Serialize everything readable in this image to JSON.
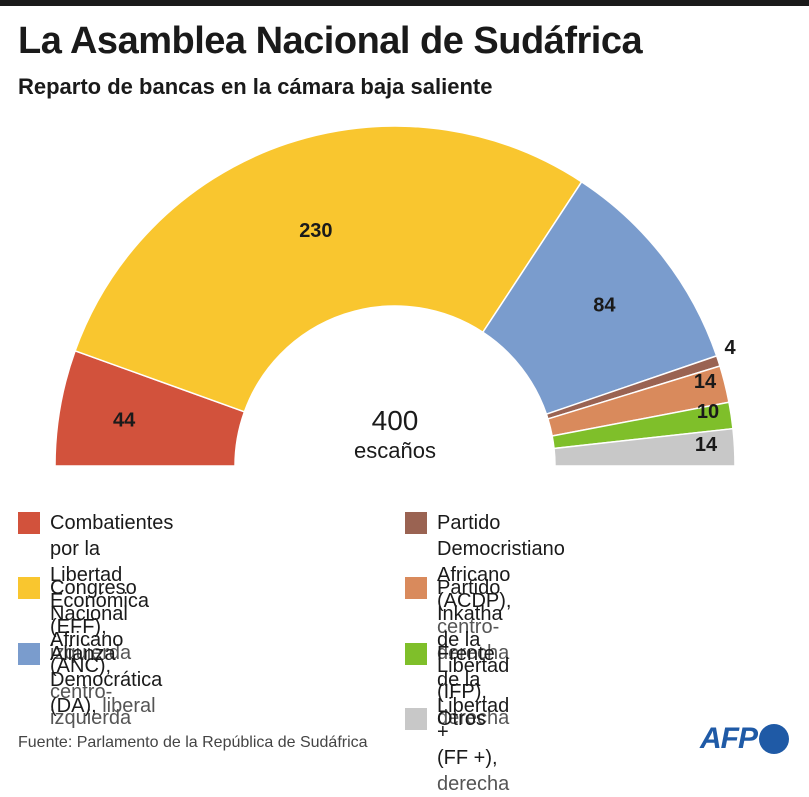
{
  "header": {
    "title": "La Asamblea Nacional de Sudáfrica",
    "subtitle": "Reparto de bancas en la cámara baja saliente"
  },
  "chart_data": {
    "type": "pie",
    "variant": "semicircle",
    "title": "La Asamblea Nacional de Sudáfrica",
    "subtitle": "Reparto de bancas en la cámara baja saliente",
    "total": 400,
    "center_label": [
      "400",
      "escaños"
    ],
    "series": [
      {
        "name": "Combatientes por la Libertad Económica (EFF)",
        "note": "izquierda",
        "value": 44,
        "color": "#d2523c"
      },
      {
        "name": "Congreso Nacional Africano (ANC)",
        "note": "centro-izquierda",
        "value": 230,
        "color": "#f9c62f"
      },
      {
        "name": "Alianza Democrática (DA)",
        "note": "liberal",
        "value": 84,
        "color": "#7a9ccd"
      },
      {
        "name": "Partido Democristiano Africano (ACDP)",
        "note": "centro-derecha",
        "value": 4,
        "color": "#9a6352"
      },
      {
        "name": "Partido Inkatha de la Libertad (IFP)",
        "note": "derecha",
        "value": 14,
        "color": "#d98a5c"
      },
      {
        "name": "Frente de la Libertad + (FF +)",
        "note": "derecha",
        "value": 10,
        "color": "#7fbf2a"
      },
      {
        "name": "Otros",
        "note": "",
        "value": 14,
        "color": "#c8c8c8"
      }
    ],
    "data_labels": [
      "44",
      "230",
      "84",
      "4",
      "14",
      "10",
      "14"
    ]
  },
  "legend": [
    {
      "line1": "Combatientes por la Libertad",
      "line2": "Económica (EFF),",
      "sub": "izquierda",
      "color": "#d2523c"
    },
    {
      "line1": "Congreso Nacional Africano",
      "line2": "(ANC),",
      "sub": "centro-izquierda",
      "color": "#f9c62f"
    },
    {
      "line1": "Alianza Democrática",
      "line2": "(DA),",
      "sub": "liberal",
      "color": "#7a9ccd"
    },
    {
      "line1": "Partido Democristiano Africano",
      "line2": "(ACDP),",
      "sub": "centro-derecha",
      "color": "#9a6352"
    },
    {
      "line1": "Partido Inkatha de la Libertad",
      "line2": "(IFP),",
      "sub": "derecha",
      "color": "#d98a5c"
    },
    {
      "line1": "Frente de la Libertad +",
      "line2": "(FF +),",
      "sub": "derecha",
      "color": "#7fbf2a"
    },
    {
      "line1": "Otros",
      "line2": "",
      "sub": "",
      "color": "#c8c8c8"
    }
  ],
  "footer": {
    "source": "Fuente: Parlamento de la República de Sudáfrica",
    "logo": "AFP"
  }
}
